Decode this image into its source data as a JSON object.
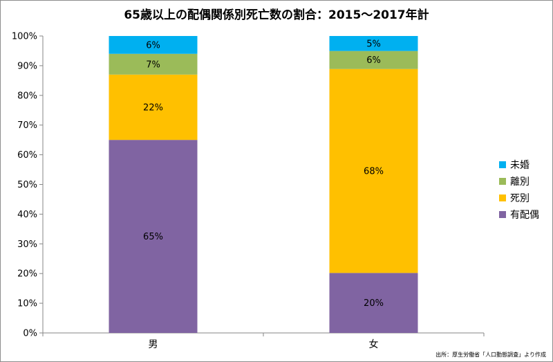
{
  "chart_data": {
    "type": "bar",
    "stacked": true,
    "title": "65歳以上の配偶関係別死亡数の割合：2015〜2017年計",
    "categories": [
      "男",
      "女"
    ],
    "series": [
      {
        "name": "有配偶",
        "values": [
          65,
          20
        ],
        "color": "#8064a2"
      },
      {
        "name": "死別",
        "values": [
          22,
          68
        ],
        "color": "#ffc000"
      },
      {
        "name": "離別",
        "values": [
          7,
          6
        ],
        "color": "#9bbb59"
      },
      {
        "name": "未婚",
        "values": [
          6,
          5
        ],
        "color": "#00b0f0"
      }
    ],
    "value_labels": [
      [
        "65%",
        "20%"
      ],
      [
        "22%",
        "68%"
      ],
      [
        "7%",
        "6%"
      ],
      [
        "6%",
        "5%"
      ]
    ],
    "yticks": [
      "0%",
      "10%",
      "20%",
      "30%",
      "40%",
      "50%",
      "60%",
      "70%",
      "80%",
      "90%",
      "100%"
    ],
    "ylim": [
      0,
      100
    ],
    "grid": false,
    "legend_position": "right",
    "source": "出所：厚生労働省「人口動態調査」より作成"
  }
}
